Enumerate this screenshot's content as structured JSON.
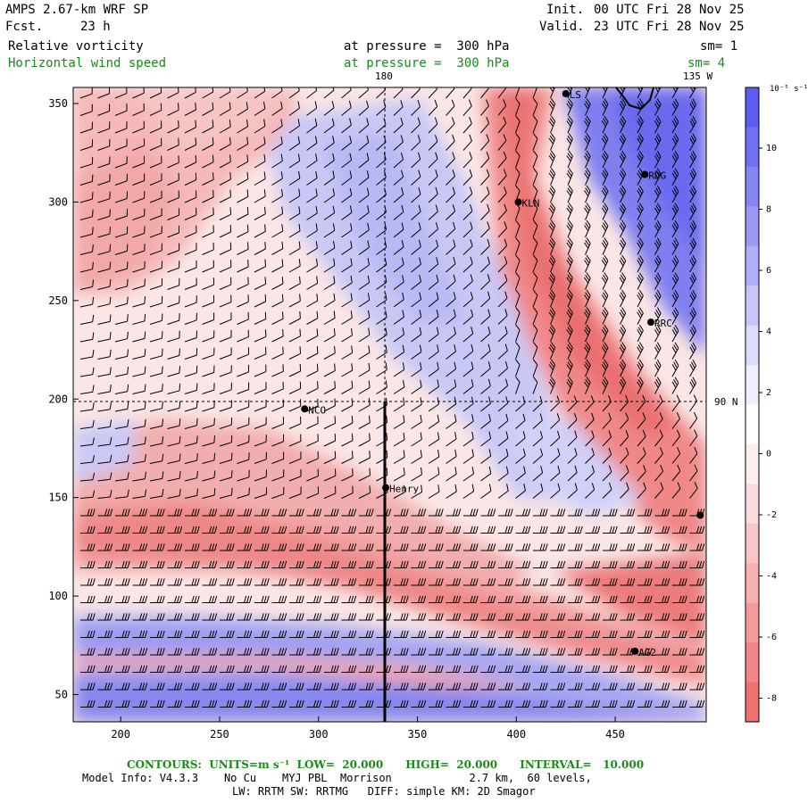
{
  "header": {
    "model_title": "AMPS 2.67-km WRF SP",
    "forecast_label": "Fcst.",
    "forecast_hour": "23 h",
    "init_label": "Init.",
    "init_time": "00 UTC Fri 28 Nov 25",
    "valid_label": "Valid.",
    "valid_time": "23 UTC Fri 28 Nov 25",
    "field1_name": "Relative vorticity",
    "field1_pressure": "at pressure =  300 hPa",
    "field1_sm": "sm= 1",
    "field2_name": "Horizontal wind speed",
    "field2_pressure": "at pressure =  300 hPa",
    "field2_sm": "sm= 4"
  },
  "map": {
    "meridian_label": "180",
    "meridian_label_2": "135 W",
    "parallel_label": "90 N",
    "x_ticks": [
      "200",
      "250",
      "300",
      "350",
      "400",
      "450"
    ],
    "y_ticks": [
      "350",
      "300",
      "250",
      "200",
      "150",
      "100",
      "50"
    ],
    "stations": [
      {
        "name": "LS",
        "x": 425,
        "y": 355
      },
      {
        "name": "RDG",
        "x": 465,
        "y": 314
      },
      {
        "name": "KLN",
        "x": 401,
        "y": 300
      },
      {
        "name": "RRC",
        "x": 468,
        "y": 239
      },
      {
        "name": "NCO",
        "x": 293,
        "y": 195
      },
      {
        "name": "Henry",
        "x": 334,
        "y": 155
      },
      {
        "name": "",
        "x": 493,
        "y": 141
      },
      {
        "name": "AG2",
        "x": 460,
        "y": 72
      }
    ]
  },
  "colorbar": {
    "unit_label": "10⁻⁵ s⁻¹",
    "ticks": [
      "10",
      "8",
      "6",
      "4",
      "2",
      "0",
      "-2",
      "-4",
      "-6",
      "-8"
    ],
    "colors": [
      "#5c5cf0",
      "#7070f2",
      "#8585f4",
      "#9a9af6",
      "#b0b0f8",
      "#c6c6fa",
      "#dcdcfc",
      "#eeeefe",
      "#ffffff",
      "#fdeeee",
      "#fbdcdc",
      "#f8c6c6",
      "#f6b0b0",
      "#f49a9a",
      "#f28585",
      "#f07070"
    ]
  },
  "footer": {
    "contours": "CONTOURS:  UNITS=m s⁻¹  LOW=  20.000      HIGH=  20.000      INTERVAL=   10.000",
    "model_info": "Model Info: V4.3.3    No Cu    MYJ PBL  Morrison            2.7 km,  60 levels,",
    "model_info_2": "LW: RRTM SW: RRTMG   DIFF: simple KM: 2D Smagor"
  }
}
